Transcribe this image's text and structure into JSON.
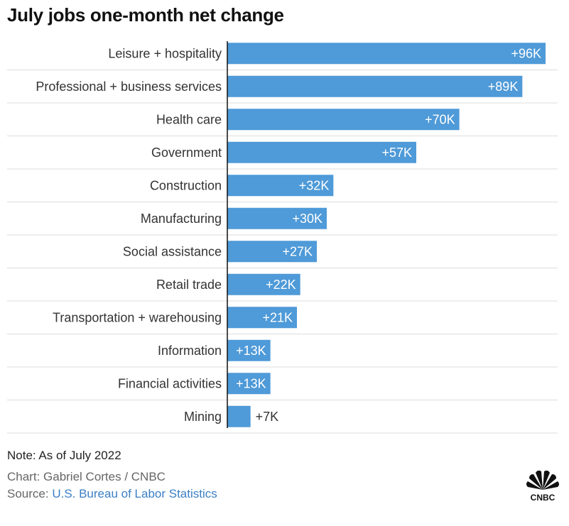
{
  "title": "July jobs one-month net change",
  "note": "Note: As of July 2022",
  "credit": "Chart: Gabriel Cortes / CNBC",
  "source_prefix": "Source: ",
  "source_link": "U.S. Bureau of Labor Statistics",
  "logo_text": "CNBC",
  "colors": {
    "bar": "#4f9ad8",
    "link": "#3b7fc4"
  },
  "chart_data": {
    "type": "bar",
    "orientation": "horizontal",
    "categories": [
      "Leisure + hospitality",
      "Professional + business services",
      "Health care",
      "Government",
      "Construction",
      "Manufacturing",
      "Social assistance",
      "Retail trade",
      "Transportation + warehousing",
      "Information",
      "Financial activities",
      "Mining"
    ],
    "values": [
      96,
      89,
      70,
      57,
      32,
      30,
      27,
      22,
      21,
      13,
      13,
      7
    ],
    "value_labels": [
      "+96K",
      "+89K",
      "+70K",
      "+57K",
      "+32K",
      "+30K",
      "+27K",
      "+22K",
      "+21K",
      "+13K",
      "+13K",
      "+7K"
    ],
    "unit": "thousands of jobs",
    "grid": false
  }
}
